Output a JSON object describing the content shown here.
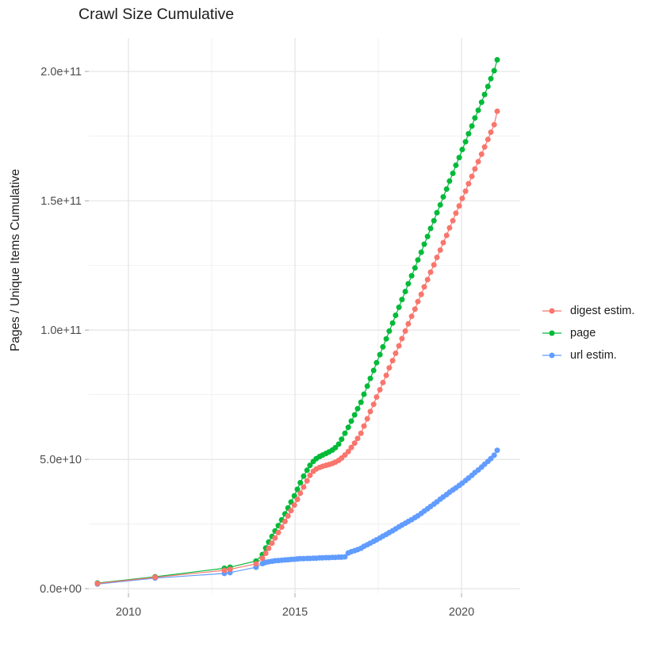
{
  "title": "Crawl Size Cumulative",
  "chart_data": {
    "type": "scatter",
    "title": "Crawl Size Cumulative",
    "xlabel": "",
    "ylabel": "Pages / Unique Items Cumulative",
    "value_unit": "1e9",
    "grid": true,
    "legend_position": "right",
    "xlim": [
      2008.81,
      2021.76
    ],
    "ylim_e9": [
      -1.8,
      212.9
    ],
    "x_ticks": [
      {
        "label": "2010",
        "value": 2010
      },
      {
        "label": "2015",
        "value": 2015
      },
      {
        "label": "2020",
        "value": 2020
      }
    ],
    "x_minor_gridlines": [
      2012.5,
      2017.5
    ],
    "y_ticks": [
      {
        "label": "0.0e+00",
        "value_e9": 0
      },
      {
        "label": "5.0e+10",
        "value_e9": 50
      },
      {
        "label": "1.0e+11",
        "value_e9": 100
      },
      {
        "label": "1.5e+11",
        "value_e9": 150
      },
      {
        "label": "2.0e+11",
        "value_e9": 200
      }
    ],
    "y_minor_gridlines_e9": [
      25,
      75,
      125,
      175
    ],
    "legend": [
      "digest estim.",
      "page",
      "url estim."
    ],
    "series": [
      {
        "name": "digest estim.",
        "color": "#F8766D",
        "points_year_value_e9": [
          [
            2009.07,
            2.0
          ],
          [
            2010.8,
            4.4
          ],
          [
            2012.88,
            7.1
          ],
          [
            2013.05,
            7.5
          ],
          [
            2013.83,
            9.6
          ],
          [
            2014.02,
            11.8
          ],
          [
            2014.12,
            13.7
          ],
          [
            2014.21,
            15.6
          ],
          [
            2014.31,
            17.6
          ],
          [
            2014.4,
            19.6
          ],
          [
            2014.5,
            21.7
          ],
          [
            2014.6,
            23.8
          ],
          [
            2014.7,
            26.0
          ],
          [
            2014.79,
            28.1
          ],
          [
            2014.88,
            30.2
          ],
          [
            2014.98,
            32.3
          ],
          [
            2015.07,
            34.5
          ],
          [
            2015.16,
            36.9
          ],
          [
            2015.26,
            39.3
          ],
          [
            2015.36,
            41.7
          ],
          [
            2015.45,
            43.8
          ],
          [
            2015.55,
            45.4
          ],
          [
            2015.64,
            46.3
          ],
          [
            2015.74,
            46.9
          ],
          [
            2015.83,
            47.3
          ],
          [
            2015.93,
            47.7
          ],
          [
            2016.02,
            48.0
          ],
          [
            2016.12,
            48.4
          ],
          [
            2016.21,
            48.9
          ],
          [
            2016.31,
            49.6
          ],
          [
            2016.4,
            50.5
          ],
          [
            2016.5,
            51.7
          ],
          [
            2016.6,
            53.0
          ],
          [
            2016.69,
            54.6
          ],
          [
            2016.79,
            56.3
          ],
          [
            2016.88,
            58.1
          ],
          [
            2016.98,
            60.1
          ],
          [
            2017.07,
            62.9
          ],
          [
            2017.17,
            65.7
          ],
          [
            2017.26,
            68.5
          ],
          [
            2017.36,
            71.3
          ],
          [
            2017.45,
            74.1
          ],
          [
            2017.55,
            76.9
          ],
          [
            2017.64,
            79.7
          ],
          [
            2017.74,
            82.5
          ],
          [
            2017.83,
            85.4
          ],
          [
            2017.93,
            88.2
          ],
          [
            2018.02,
            91.0
          ],
          [
            2018.12,
            93.9
          ],
          [
            2018.21,
            96.7
          ],
          [
            2018.31,
            99.6
          ],
          [
            2018.4,
            102.4
          ],
          [
            2018.5,
            105.3
          ],
          [
            2018.6,
            108.1
          ],
          [
            2018.69,
            111.0
          ],
          [
            2018.79,
            113.8
          ],
          [
            2018.88,
            116.7
          ],
          [
            2018.98,
            119.5
          ],
          [
            2019.07,
            122.4
          ],
          [
            2019.17,
            125.2
          ],
          [
            2019.26,
            128.1
          ],
          [
            2019.36,
            130.9
          ],
          [
            2019.45,
            133.8
          ],
          [
            2019.55,
            136.6
          ],
          [
            2019.64,
            139.5
          ],
          [
            2019.74,
            142.3
          ],
          [
            2019.83,
            145.2
          ],
          [
            2019.93,
            148.0
          ],
          [
            2020.02,
            150.9
          ],
          [
            2020.12,
            153.7
          ],
          [
            2020.21,
            156.6
          ],
          [
            2020.31,
            159.4
          ],
          [
            2020.4,
            162.3
          ],
          [
            2020.5,
            165.1
          ],
          [
            2020.6,
            168.0
          ],
          [
            2020.69,
            170.8
          ],
          [
            2020.79,
            173.7
          ],
          [
            2020.88,
            176.5
          ],
          [
            2020.98,
            179.4
          ],
          [
            2021.07,
            184.6
          ]
        ]
      },
      {
        "name": "page",
        "color": "#00BA38",
        "points_year_value_e9": [
          [
            2009.07,
            2.2
          ],
          [
            2010.8,
            4.6
          ],
          [
            2012.88,
            7.9
          ],
          [
            2013.05,
            8.3
          ],
          [
            2013.83,
            10.7
          ],
          [
            2014.02,
            13.2
          ],
          [
            2014.12,
            15.7
          ],
          [
            2014.21,
            18.0
          ],
          [
            2014.31,
            20.2
          ],
          [
            2014.4,
            22.3
          ],
          [
            2014.5,
            24.4
          ],
          [
            2014.6,
            26.6
          ],
          [
            2014.7,
            28.9
          ],
          [
            2014.79,
            31.2
          ],
          [
            2014.88,
            33.5
          ],
          [
            2014.98,
            35.9
          ],
          [
            2015.07,
            38.4
          ],
          [
            2015.16,
            41.0
          ],
          [
            2015.26,
            43.5
          ],
          [
            2015.36,
            45.8
          ],
          [
            2015.45,
            47.7
          ],
          [
            2015.55,
            49.2
          ],
          [
            2015.64,
            50.3
          ],
          [
            2015.74,
            51.1
          ],
          [
            2015.83,
            51.7
          ],
          [
            2015.93,
            52.3
          ],
          [
            2016.02,
            52.9
          ],
          [
            2016.12,
            53.6
          ],
          [
            2016.21,
            54.5
          ],
          [
            2016.31,
            55.9
          ],
          [
            2016.4,
            57.8
          ],
          [
            2016.5,
            60.1
          ],
          [
            2016.6,
            62.4
          ],
          [
            2016.69,
            64.8
          ],
          [
            2016.79,
            67.2
          ],
          [
            2016.88,
            69.6
          ],
          [
            2016.98,
            72.1
          ],
          [
            2017.07,
            75.2
          ],
          [
            2017.17,
            78.3
          ],
          [
            2017.26,
            81.3
          ],
          [
            2017.36,
            84.4
          ],
          [
            2017.45,
            87.4
          ],
          [
            2017.55,
            90.5
          ],
          [
            2017.64,
            93.5
          ],
          [
            2017.74,
            96.6
          ],
          [
            2017.83,
            99.6
          ],
          [
            2017.93,
            102.7
          ],
          [
            2018.02,
            105.7
          ],
          [
            2018.12,
            108.8
          ],
          [
            2018.21,
            111.8
          ],
          [
            2018.31,
            114.9
          ],
          [
            2018.4,
            117.9
          ],
          [
            2018.5,
            121.0
          ],
          [
            2018.6,
            124.0
          ],
          [
            2018.69,
            127.1
          ],
          [
            2018.79,
            130.1
          ],
          [
            2018.88,
            133.2
          ],
          [
            2018.98,
            136.2
          ],
          [
            2019.07,
            139.3
          ],
          [
            2019.17,
            142.3
          ],
          [
            2019.26,
            145.4
          ],
          [
            2019.36,
            148.4
          ],
          [
            2019.45,
            151.5
          ],
          [
            2019.55,
            154.5
          ],
          [
            2019.64,
            157.6
          ],
          [
            2019.74,
            160.6
          ],
          [
            2019.83,
            163.7
          ],
          [
            2019.93,
            166.7
          ],
          [
            2020.02,
            169.8
          ],
          [
            2020.12,
            172.8
          ],
          [
            2020.21,
            175.9
          ],
          [
            2020.31,
            178.9
          ],
          [
            2020.4,
            182.0
          ],
          [
            2020.5,
            185.0
          ],
          [
            2020.6,
            188.1
          ],
          [
            2020.69,
            191.1
          ],
          [
            2020.79,
            194.2
          ],
          [
            2020.88,
            197.2
          ],
          [
            2020.98,
            200.3
          ],
          [
            2021.07,
            204.5
          ]
        ]
      },
      {
        "name": "url estim.",
        "color": "#619CFF",
        "points_year_value_e9": [
          [
            2009.07,
            1.8
          ],
          [
            2010.8,
            4.1
          ],
          [
            2012.88,
            5.9
          ],
          [
            2013.05,
            6.2
          ],
          [
            2013.83,
            8.3
          ],
          [
            2014.02,
            9.7
          ],
          [
            2014.07,
            10.0
          ],
          [
            2014.12,
            10.2
          ],
          [
            2014.21,
            10.4
          ],
          [
            2014.31,
            10.6
          ],
          [
            2014.4,
            10.8
          ],
          [
            2014.5,
            10.9
          ],
          [
            2014.6,
            11.0
          ],
          [
            2014.7,
            11.1
          ],
          [
            2014.79,
            11.2
          ],
          [
            2014.88,
            11.3
          ],
          [
            2014.98,
            11.4
          ],
          [
            2015.07,
            11.5
          ],
          [
            2015.16,
            11.6
          ],
          [
            2015.26,
            11.6
          ],
          [
            2015.36,
            11.7
          ],
          [
            2015.45,
            11.7
          ],
          [
            2015.55,
            11.8
          ],
          [
            2015.64,
            11.8
          ],
          [
            2015.74,
            11.9
          ],
          [
            2015.83,
            11.9
          ],
          [
            2015.93,
            12.0
          ],
          [
            2016.02,
            12.0
          ],
          [
            2016.12,
            12.1
          ],
          [
            2016.21,
            12.1
          ],
          [
            2016.31,
            12.2
          ],
          [
            2016.4,
            12.2
          ],
          [
            2016.5,
            12.3
          ],
          [
            2016.6,
            13.8
          ],
          [
            2016.69,
            14.3
          ],
          [
            2016.79,
            14.7
          ],
          [
            2016.88,
            15.1
          ],
          [
            2016.98,
            15.6
          ],
          [
            2017.07,
            16.4
          ],
          [
            2017.17,
            17.0
          ],
          [
            2017.26,
            17.6
          ],
          [
            2017.36,
            18.3
          ],
          [
            2017.45,
            18.9
          ],
          [
            2017.55,
            19.6
          ],
          [
            2017.64,
            20.3
          ],
          [
            2017.74,
            21.0
          ],
          [
            2017.83,
            21.7
          ],
          [
            2017.93,
            22.4
          ],
          [
            2018.02,
            23.1
          ],
          [
            2018.12,
            23.9
          ],
          [
            2018.21,
            24.6
          ],
          [
            2018.31,
            25.3
          ],
          [
            2018.4,
            26.0
          ],
          [
            2018.5,
            26.7
          ],
          [
            2018.6,
            27.5
          ],
          [
            2018.69,
            28.2
          ],
          [
            2018.79,
            29.1
          ],
          [
            2018.88,
            30.0
          ],
          [
            2018.98,
            30.9
          ],
          [
            2019.07,
            31.8
          ],
          [
            2019.17,
            32.7
          ],
          [
            2019.26,
            33.6
          ],
          [
            2019.36,
            34.6
          ],
          [
            2019.45,
            35.5
          ],
          [
            2019.55,
            36.4
          ],
          [
            2019.64,
            37.3
          ],
          [
            2019.74,
            38.2
          ],
          [
            2019.83,
            39.0
          ],
          [
            2019.93,
            39.9
          ],
          [
            2020.02,
            40.8
          ],
          [
            2020.12,
            41.8
          ],
          [
            2020.21,
            42.8
          ],
          [
            2020.31,
            43.8
          ],
          [
            2020.4,
            44.9
          ],
          [
            2020.5,
            45.9
          ],
          [
            2020.6,
            47.0
          ],
          [
            2020.69,
            48.1
          ],
          [
            2020.79,
            49.2
          ],
          [
            2020.88,
            50.3
          ],
          [
            2020.98,
            51.6
          ],
          [
            2021.07,
            53.5
          ]
        ]
      }
    ],
    "style": {
      "major_grid_color": "#E4E4E4",
      "minor_grid_color": "#EFEFEF",
      "tick_color": "#B0B0B0",
      "tick_label_color": "#4D4D4D",
      "text_color": "#1c1c1c"
    }
  }
}
